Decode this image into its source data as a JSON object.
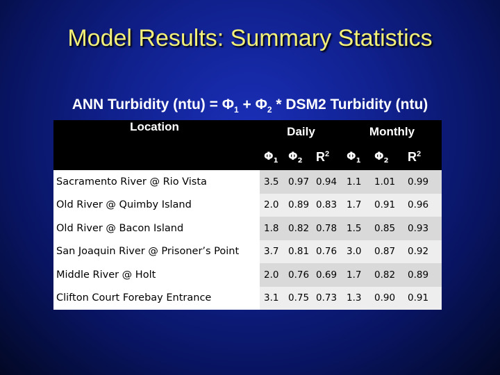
{
  "title": "Model Results: Summary Statistics",
  "formula": {
    "prefix": "ANN Turbidity (ntu) = Φ",
    "phi1_sub": "1",
    "middle": " + Φ",
    "phi2_sub": "2",
    "suffix": " * DSM2 Turbidity (ntu)"
  },
  "table": {
    "headers": {
      "location": "Location",
      "daily": "Daily",
      "monthly": "Monthly",
      "phi": "Φ",
      "sub1": "1",
      "sub2": "2",
      "r": "R",
      "r_sup": "2"
    },
    "rows": [
      {
        "location": "Sacramento River @ Rio Vista",
        "daily_phi1": "3.5",
        "daily_phi2": "0.97",
        "daily_r2": "0.94",
        "monthly_phi1": "1.1",
        "monthly_phi2": "1.01",
        "monthly_r2": "0.99"
      },
      {
        "location": "Old River @ Quimby Island",
        "daily_phi1": "2.0",
        "daily_phi2": "0.89",
        "daily_r2": "0.83",
        "monthly_phi1": "1.7",
        "monthly_phi2": "0.91",
        "monthly_r2": "0.96"
      },
      {
        "location": "Old River @ Bacon Island",
        "daily_phi1": "1.8",
        "daily_phi2": "0.82",
        "daily_r2": "0.78",
        "monthly_phi1": "1.5",
        "monthly_phi2": "0.85",
        "monthly_r2": "0.93"
      },
      {
        "location": "San Joaquin River @ Prisoner’s Point",
        "daily_phi1": "3.7",
        "daily_phi2": "0.81",
        "daily_r2": "0.76",
        "monthly_phi1": "3.0",
        "monthly_phi2": "0.87",
        "monthly_r2": "0.92"
      },
      {
        "location": "Middle River @ Holt",
        "daily_phi1": "2.0",
        "daily_phi2": "0.76",
        "daily_r2": "0.69",
        "monthly_phi1": "1.7",
        "monthly_phi2": "0.82",
        "monthly_r2": "0.89"
      },
      {
        "location": "Clifton Court Forebay Entrance",
        "daily_phi1": "3.1",
        "daily_phi2": "0.75",
        "daily_r2": "0.73",
        "monthly_phi1": "1.3",
        "monthly_phi2": "0.90",
        "monthly_r2": "0.91"
      }
    ]
  }
}
